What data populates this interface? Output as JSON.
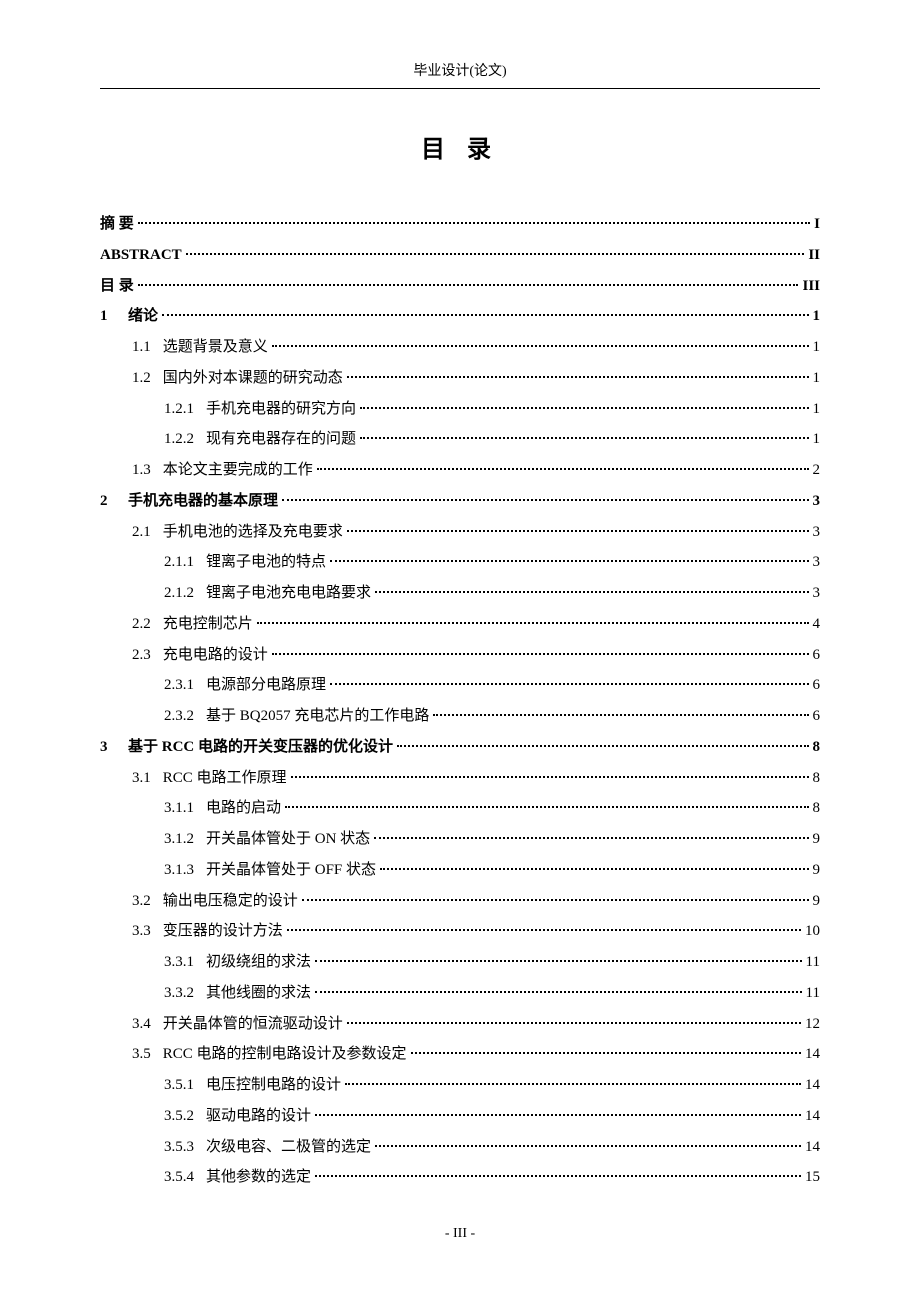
{
  "header": "毕业设计(论文)",
  "title": "目 录",
  "footer": "- III -",
  "toc": [
    {
      "level": 0,
      "num": "",
      "label": "摘 要",
      "page": "I",
      "bold": true
    },
    {
      "level": 0,
      "num": "",
      "label": "ABSTRACT",
      "page": "II",
      "bold": true
    },
    {
      "level": 0,
      "num": "",
      "label": "目 录",
      "page": "III",
      "bold": true
    },
    {
      "level": 0,
      "num": "1",
      "label": "绪论",
      "page": "1",
      "bold": true
    },
    {
      "level": 1,
      "num": "1.1",
      "label": "选题背景及意义",
      "page": "1",
      "bold": false
    },
    {
      "level": 1,
      "num": "1.2",
      "label": "国内外对本课题的研究动态",
      "page": "1",
      "bold": false
    },
    {
      "level": 2,
      "num": "1.2.1",
      "label": "手机充电器的研究方向",
      "page": "1",
      "bold": false
    },
    {
      "level": 2,
      "num": "1.2.2",
      "label": "现有充电器存在的问题",
      "page": "1",
      "bold": false
    },
    {
      "level": 1,
      "num": "1.3",
      "label": "本论文主要完成的工作",
      "page": "2",
      "bold": false
    },
    {
      "level": 0,
      "num": "2",
      "label": "手机充电器的基本原理",
      "page": "3",
      "bold": true
    },
    {
      "level": 1,
      "num": "2.1",
      "label": "手机电池的选择及充电要求",
      "page": "3",
      "bold": false
    },
    {
      "level": 2,
      "num": "2.1.1",
      "label": "锂离子电池的特点",
      "page": "3",
      "bold": false
    },
    {
      "level": 2,
      "num": "2.1.2",
      "label": "锂离子电池充电电路要求",
      "page": "3",
      "bold": false
    },
    {
      "level": 1,
      "num": "2.2",
      "label": "充电控制芯片",
      "page": "4",
      "bold": false
    },
    {
      "level": 1,
      "num": "2.3",
      "label": "充电电路的设计",
      "page": "6",
      "bold": false
    },
    {
      "level": 2,
      "num": "2.3.1",
      "label": "电源部分电路原理",
      "page": "6",
      "bold": false
    },
    {
      "level": 2,
      "num": "2.3.2",
      "label": "基于 BQ2057 充电芯片的工作电路",
      "page": "6",
      "bold": false
    },
    {
      "level": 0,
      "num": "3",
      "label": "基于 RCC 电路的开关变压器的优化设计",
      "page": "8",
      "bold": true
    },
    {
      "level": 1,
      "num": "3.1",
      "label": "RCC 电路工作原理",
      "page": "8",
      "bold": false
    },
    {
      "level": 2,
      "num": "3.1.1",
      "label": "电路的启动",
      "page": "8",
      "bold": false
    },
    {
      "level": 2,
      "num": "3.1.2",
      "label": "开关晶体管处于 ON 状态",
      "page": "9",
      "bold": false
    },
    {
      "level": 2,
      "num": "3.1.3",
      "label": "开关晶体管处于 OFF 状态",
      "page": "9",
      "bold": false
    },
    {
      "level": 1,
      "num": "3.2",
      "label": "输出电压稳定的设计",
      "page": "9",
      "bold": false
    },
    {
      "level": 1,
      "num": "3.3",
      "label": "变压器的设计方法",
      "page": "10",
      "bold": false
    },
    {
      "level": 2,
      "num": "3.3.1",
      "label": "初级绕组的求法",
      "page": "11",
      "bold": false
    },
    {
      "level": 2,
      "num": "3.3.2",
      "label": "其他线圈的求法",
      "page": "11",
      "bold": false
    },
    {
      "level": 1,
      "num": "3.4",
      "label": "开关晶体管的恒流驱动设计",
      "page": "12",
      "bold": false
    },
    {
      "level": 1,
      "num": "3.5",
      "label": "RCC 电路的控制电路设计及参数设定",
      "page": "14",
      "bold": false
    },
    {
      "level": 2,
      "num": "3.5.1",
      "label": "电压控制电路的设计",
      "page": "14",
      "bold": false
    },
    {
      "level": 2,
      "num": "3.5.2",
      "label": "驱动电路的设计",
      "page": "14",
      "bold": false
    },
    {
      "level": 2,
      "num": "3.5.3",
      "label": "次级电容、二极管的选定",
      "page": "14",
      "bold": false
    },
    {
      "level": 2,
      "num": "3.5.4",
      "label": "其他参数的选定",
      "page": "15",
      "bold": false
    }
  ]
}
